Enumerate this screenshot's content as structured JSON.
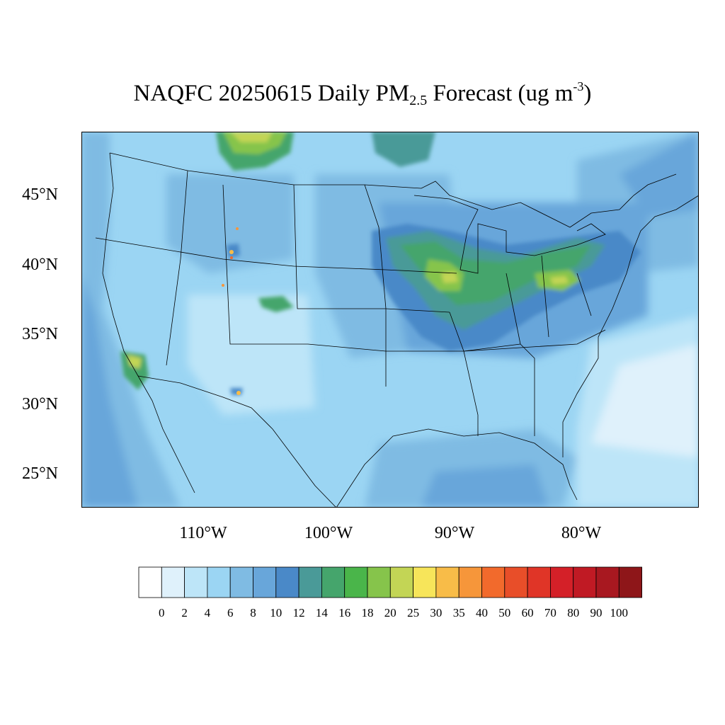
{
  "title": {
    "pre": "NAQFC 20250615 Daily PM",
    "sub": "2.5",
    "mid": " Forecast (ug m",
    "sup": "-3",
    "post": ")"
  },
  "lat_labels": [
    "45°N",
    "40°N",
    "35°N",
    "30°N",
    "25°N"
  ],
  "lon_labels": [
    "110°W",
    "100°W",
    "90°W",
    "80°W"
  ],
  "colorbar": {
    "levels": [
      "0",
      "2",
      "4",
      "6",
      "8",
      "10",
      "12",
      "14",
      "16",
      "18",
      "20",
      "25",
      "30",
      "35",
      "40",
      "50",
      "60",
      "70",
      "80",
      "90",
      "100"
    ],
    "colors": [
      "#ffffff",
      "#dff1fb",
      "#bde5f8",
      "#9bd5f3",
      "#7fbbe3",
      "#68a6da",
      "#4a89c8",
      "#4a9a98",
      "#45a56c",
      "#4ab54a",
      "#86c44b",
      "#c3d555",
      "#f7e55a",
      "#f8bc48",
      "#f6963a",
      "#f26a2c",
      "#e84e29",
      "#e03527",
      "#d42028",
      "#c01a24",
      "#a81820",
      "#8e1619"
    ]
  },
  "map": {
    "lon_range": [
      -125,
      -65
    ],
    "lat_range": [
      23,
      50
    ],
    "background_color": "#9bd5f3"
  }
}
